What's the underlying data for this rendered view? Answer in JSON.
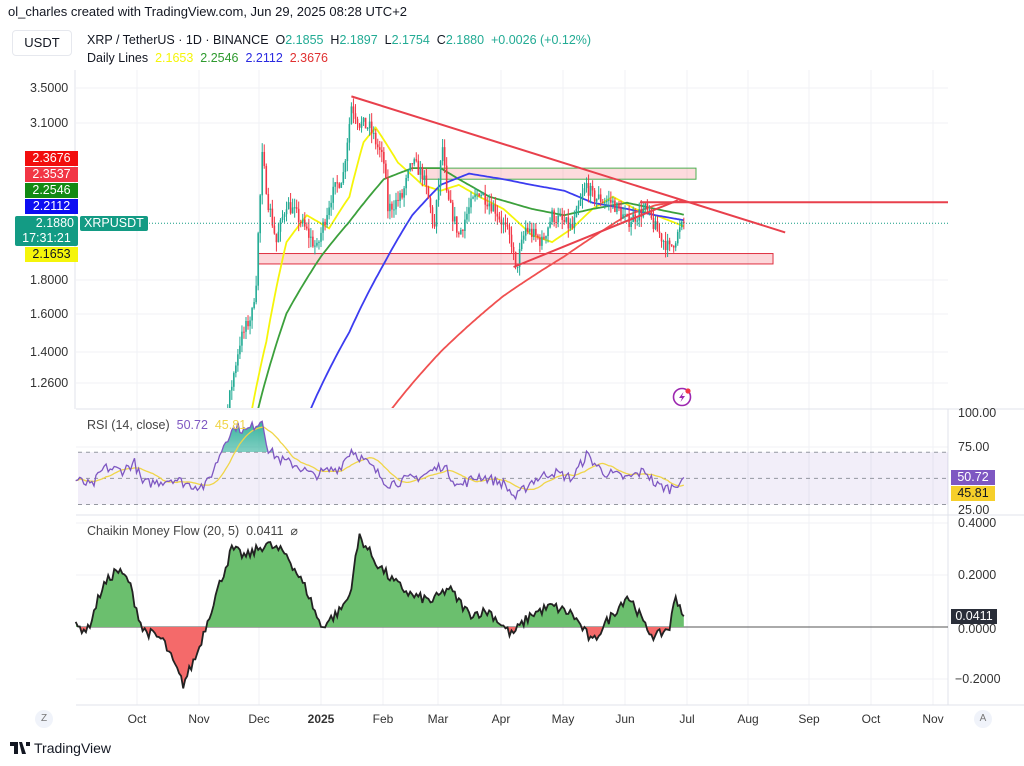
{
  "header": {
    "credit": "ol_charles created with TradingView.com, Jun 29, 2025 08:28 UTC+2",
    "currency": "USDT",
    "symbol": "XRP / TetherUS · 1D · BINANCE",
    "o_label": "O",
    "o": "2.1855",
    "h_label": "H",
    "h": "2.1897",
    "l_label": "L",
    "l": "2.1754",
    "c_label": "C",
    "c": "2.1880",
    "change": "+0.0026 (+0.12%)",
    "lines_label": "Daily Lines",
    "lines": [
      "2.1653",
      "2.2546",
      "2.2112",
      "2.3676"
    ]
  },
  "price_tags": [
    {
      "value": "2.3676",
      "color": "#f20d0d"
    },
    {
      "value": "2.3537",
      "color": "#f23645"
    },
    {
      "value": "2.2546",
      "color": "#138a13"
    },
    {
      "value": "2.2112",
      "color": "#0d0df2"
    },
    {
      "value": "2.1880",
      "time": "17:31:21",
      "color": "#139b84",
      "ticker": "XRPUSDT"
    },
    {
      "value": "2.1653",
      "color": "#f5f50a"
    }
  ],
  "footer": {
    "brand": "TradingView",
    "left_btn": "Z",
    "right_btn": "A"
  },
  "colors": {
    "up": "#22ab94",
    "down": "#f23645",
    "ma20": "#f5f50a",
    "ma50": "#3ca03c",
    "ma100": "#3c3cf0",
    "ma200": "#f05050",
    "rsi": "#7e57c2",
    "rsi_ma": "#f0d548"
  },
  "chart_data": {
    "type": "candlestick",
    "title": "XRP / TetherUS · 1D · BINANCE",
    "y_scale": "log",
    "price_axis_ticks": [
      "3.5000",
      "3.1000",
      "1.8000",
      "1.6000",
      "1.4000",
      "1.2600"
    ],
    "x_ticks": [
      "Oct",
      "Nov",
      "Dec",
      "2025",
      "Feb",
      "Mar",
      "Apr",
      "May",
      "Jun",
      "Jul",
      "Aug",
      "Sep",
      "Oct",
      "Nov"
    ],
    "price_close": [
      [
        "2024-11-01",
        0.52
      ],
      [
        "2024-11-10",
        0.9
      ],
      [
        "2024-11-16",
        1.15
      ],
      [
        "2024-11-22",
        1.45
      ],
      [
        "2024-11-28",
        1.6
      ],
      [
        "2024-11-30",
        1.8
      ],
      [
        "2024-12-02",
        2.4
      ],
      [
        "2024-12-03",
        2.75
      ],
      [
        "2024-12-06",
        2.35
      ],
      [
        "2024-12-10",
        2.05
      ],
      [
        "2024-12-15",
        2.35
      ],
      [
        "2024-12-20",
        2.25
      ],
      [
        "2024-12-26",
        2.1
      ],
      [
        "2024-12-30",
        2.0
      ],
      [
        "2025-01-06",
        2.4
      ],
      [
        "2025-01-12",
        2.6
      ],
      [
        "2025-01-15",
        3.1
      ],
      [
        "2025-01-16",
        3.3
      ],
      [
        "2025-01-20",
        3.1
      ],
      [
        "2025-01-25",
        3.05
      ],
      [
        "2025-02-01",
        2.7
      ],
      [
        "2025-02-03",
        2.3
      ],
      [
        "2025-02-10",
        2.4
      ],
      [
        "2025-02-15",
        2.7
      ],
      [
        "2025-02-20",
        2.6
      ],
      [
        "2025-02-26",
        2.15
      ],
      [
        "2025-03-02",
        2.85
      ],
      [
        "2025-03-04",
        2.4
      ],
      [
        "2025-03-10",
        2.1
      ],
      [
        "2025-03-15",
        2.3
      ],
      [
        "2025-03-20",
        2.45
      ],
      [
        "2025-03-28",
        2.3
      ],
      [
        "2025-04-05",
        2.05
      ],
      [
        "2025-04-07",
        1.85
      ],
      [
        "2025-04-12",
        2.15
      ],
      [
        "2025-04-20",
        2.05
      ],
      [
        "2025-04-25",
        2.25
      ],
      [
        "2025-05-05",
        2.15
      ],
      [
        "2025-05-12",
        2.5
      ],
      [
        "2025-05-15",
        2.4
      ],
      [
        "2025-05-25",
        2.35
      ],
      [
        "2025-06-01",
        2.2
      ],
      [
        "2025-06-10",
        2.3
      ],
      [
        "2025-06-15",
        2.15
      ],
      [
        "2025-06-22",
        2.0
      ],
      [
        "2025-06-29",
        2.188
      ]
    ],
    "moving_averages": [
      {
        "color": "#f5f50a",
        "last": 2.1653,
        "points": [
          [
            "2024-11-28",
            1.15
          ],
          [
            "2024-12-05",
            1.45
          ],
          [
            "2024-12-15",
            2.05
          ],
          [
            "2024-12-25",
            2.25
          ],
          [
            "2025-01-05",
            2.15
          ],
          [
            "2025-01-15",
            2.4
          ],
          [
            "2025-01-22",
            2.9
          ],
          [
            "2025-01-28",
            3.05
          ],
          [
            "2025-02-08",
            2.7
          ],
          [
            "2025-02-20",
            2.5
          ],
          [
            "2025-03-01",
            2.45
          ],
          [
            "2025-03-10",
            2.5
          ],
          [
            "2025-03-20",
            2.4
          ],
          [
            "2025-04-01",
            2.3
          ],
          [
            "2025-04-15",
            2.1
          ],
          [
            "2025-04-25",
            2.05
          ],
          [
            "2025-05-05",
            2.15
          ],
          [
            "2025-05-15",
            2.3
          ],
          [
            "2025-05-25",
            2.4
          ],
          [
            "2025-06-05",
            2.3
          ],
          [
            "2025-06-15",
            2.25
          ],
          [
            "2025-06-29",
            2.1653
          ]
        ]
      },
      {
        "color": "#3ca03c",
        "last": 2.2546,
        "points": [
          [
            "2024-12-01",
            1.15
          ],
          [
            "2024-12-15",
            1.6
          ],
          [
            "2025-01-01",
            1.95
          ],
          [
            "2025-01-15",
            2.2
          ],
          [
            "2025-02-01",
            2.55
          ],
          [
            "2025-02-15",
            2.65
          ],
          [
            "2025-03-01",
            2.65
          ],
          [
            "2025-03-10",
            2.55
          ],
          [
            "2025-03-25",
            2.4
          ],
          [
            "2025-04-15",
            2.3
          ],
          [
            "2025-05-01",
            2.25
          ],
          [
            "2025-05-15",
            2.3
          ],
          [
            "2025-06-01",
            2.35
          ],
          [
            "2025-06-15",
            2.3
          ],
          [
            "2025-06-29",
            2.2546
          ]
        ]
      },
      {
        "color": "#3c3cf0",
        "last": 2.2112,
        "points": [
          [
            "2024-12-27",
            1.15
          ],
          [
            "2025-01-15",
            1.5
          ],
          [
            "2025-02-01",
            1.9
          ],
          [
            "2025-02-15",
            2.25
          ],
          [
            "2025-03-01",
            2.5
          ],
          [
            "2025-03-15",
            2.6
          ],
          [
            "2025-04-01",
            2.55
          ],
          [
            "2025-04-15",
            2.5
          ],
          [
            "2025-05-01",
            2.45
          ],
          [
            "2025-05-15",
            2.35
          ],
          [
            "2025-06-01",
            2.3
          ],
          [
            "2025-06-15",
            2.25
          ],
          [
            "2025-06-29",
            2.2112
          ]
        ]
      },
      {
        "color": "#f05050",
        "last": 2.3676,
        "points": [
          [
            "2025-02-05",
            1.15
          ],
          [
            "2025-03-01",
            1.4
          ],
          [
            "2025-04-01",
            1.7
          ],
          [
            "2025-05-01",
            1.95
          ],
          [
            "2025-06-01",
            2.25
          ],
          [
            "2025-06-15",
            2.33
          ],
          [
            "2025-06-29",
            2.3676
          ]
        ]
      }
    ],
    "drawings": {
      "descending_trendline": [
        [
          "2025-01-16",
          3.4
        ],
        [
          "2025-08-18",
          2.12
        ]
      ],
      "ascending_trendline": [
        [
          "2025-04-06",
          1.88
        ],
        [
          "2025-06-26",
          2.37
        ]
      ],
      "horizontal_line": 2.3537,
      "resistance_zone": {
        "from": "2025-02-20",
        "to": "2025-07-05",
        "low": 2.55,
        "high": 2.65
      },
      "support_zone": {
        "from": "2024-12-01",
        "to": "2025-08-12",
        "low": 1.9,
        "high": 1.97
      }
    },
    "rsi": {
      "label": "RSI (14, close)",
      "value": "50.72",
      "ma_value": "45.81",
      "ticks": [
        "100.00",
        "75.00",
        "25.00"
      ],
      "bands": [
        70,
        50,
        30
      ],
      "points": [
        [
          "2024-09-02",
          49
        ],
        [
          "2024-09-10",
          44
        ],
        [
          "2024-09-16",
          58
        ],
        [
          "2024-09-25",
          56
        ],
        [
          "2024-10-01",
          62
        ],
        [
          "2024-10-05",
          46
        ],
        [
          "2024-10-12",
          47
        ],
        [
          "2024-10-20",
          50
        ],
        [
          "2024-10-28",
          45
        ],
        [
          "2024-11-05",
          44
        ],
        [
          "2024-11-10",
          60
        ],
        [
          "2024-11-15",
          80
        ],
        [
          "2024-11-20",
          90
        ],
        [
          "2024-11-25",
          86
        ],
        [
          "2024-12-03",
          95
        ],
        [
          "2024-12-06",
          72
        ],
        [
          "2024-12-12",
          64
        ],
        [
          "2024-12-20",
          60
        ],
        [
          "2024-12-28",
          52
        ],
        [
          "2025-01-05",
          56
        ],
        [
          "2025-01-10",
          58
        ],
        [
          "2025-01-16",
          72
        ],
        [
          "2025-01-25",
          60
        ],
        [
          "2025-02-03",
          46
        ],
        [
          "2025-02-10",
          48
        ],
        [
          "2025-02-20",
          52
        ],
        [
          "2025-03-02",
          60
        ],
        [
          "2025-03-10",
          44
        ],
        [
          "2025-03-20",
          52
        ],
        [
          "2025-04-01",
          46
        ],
        [
          "2025-04-07",
          35
        ],
        [
          "2025-04-15",
          48
        ],
        [
          "2025-04-25",
          55
        ],
        [
          "2025-05-05",
          50
        ],
        [
          "2025-05-12",
          68
        ],
        [
          "2025-05-20",
          55
        ],
        [
          "2025-06-01",
          50
        ],
        [
          "2025-06-10",
          56
        ],
        [
          "2025-06-15",
          45
        ],
        [
          "2025-06-22",
          42
        ],
        [
          "2025-06-29",
          50.72
        ]
      ]
    },
    "cmf": {
      "label": "Chaikin Money Flow (20, 5)",
      "value": "0.0411",
      "ticks": [
        "0.4000",
        "0.2000",
        "0.0000",
        "−0.2000"
      ],
      "points": [
        [
          "2024-09-02",
          0.0
        ],
        [
          "2024-09-08",
          -0.01
        ],
        [
          "2024-09-15",
          0.15
        ],
        [
          "2024-09-22",
          0.22
        ],
        [
          "2024-09-28",
          0.18
        ],
        [
          "2024-10-05",
          -0.01
        ],
        [
          "2024-10-15",
          -0.05
        ],
        [
          "2024-10-25",
          -0.22
        ],
        [
          "2024-11-01",
          -0.1
        ],
        [
          "2024-11-05",
          0.0
        ],
        [
          "2024-11-10",
          0.12
        ],
        [
          "2024-11-18",
          0.3
        ],
        [
          "2024-11-25",
          0.27
        ],
        [
          "2024-12-05",
          0.32
        ],
        [
          "2024-12-15",
          0.28
        ],
        [
          "2024-12-25",
          0.14
        ],
        [
          "2025-01-01",
          0.0
        ],
        [
          "2025-01-10",
          0.06
        ],
        [
          "2025-01-15",
          0.12
        ],
        [
          "2025-01-20",
          0.35
        ],
        [
          "2025-01-28",
          0.25
        ],
        [
          "2025-02-05",
          0.18
        ],
        [
          "2025-02-15",
          0.12
        ],
        [
          "2025-02-25",
          0.1
        ],
        [
          "2025-03-05",
          0.15
        ],
        [
          "2025-03-15",
          0.05
        ],
        [
          "2025-03-25",
          0.06
        ],
        [
          "2025-04-05",
          -0.03
        ],
        [
          "2025-04-15",
          0.05
        ],
        [
          "2025-04-25",
          0.08
        ],
        [
          "2025-05-05",
          0.05
        ],
        [
          "2025-05-15",
          -0.06
        ],
        [
          "2025-05-20",
          0.0
        ],
        [
          "2025-06-01",
          0.12
        ],
        [
          "2025-06-05",
          0.08
        ],
        [
          "2025-06-10",
          0.0
        ],
        [
          "2025-06-15",
          -0.04
        ],
        [
          "2025-06-22",
          0.0
        ],
        [
          "2025-06-25",
          0.12
        ],
        [
          "2025-06-29",
          0.0411
        ]
      ]
    }
  }
}
